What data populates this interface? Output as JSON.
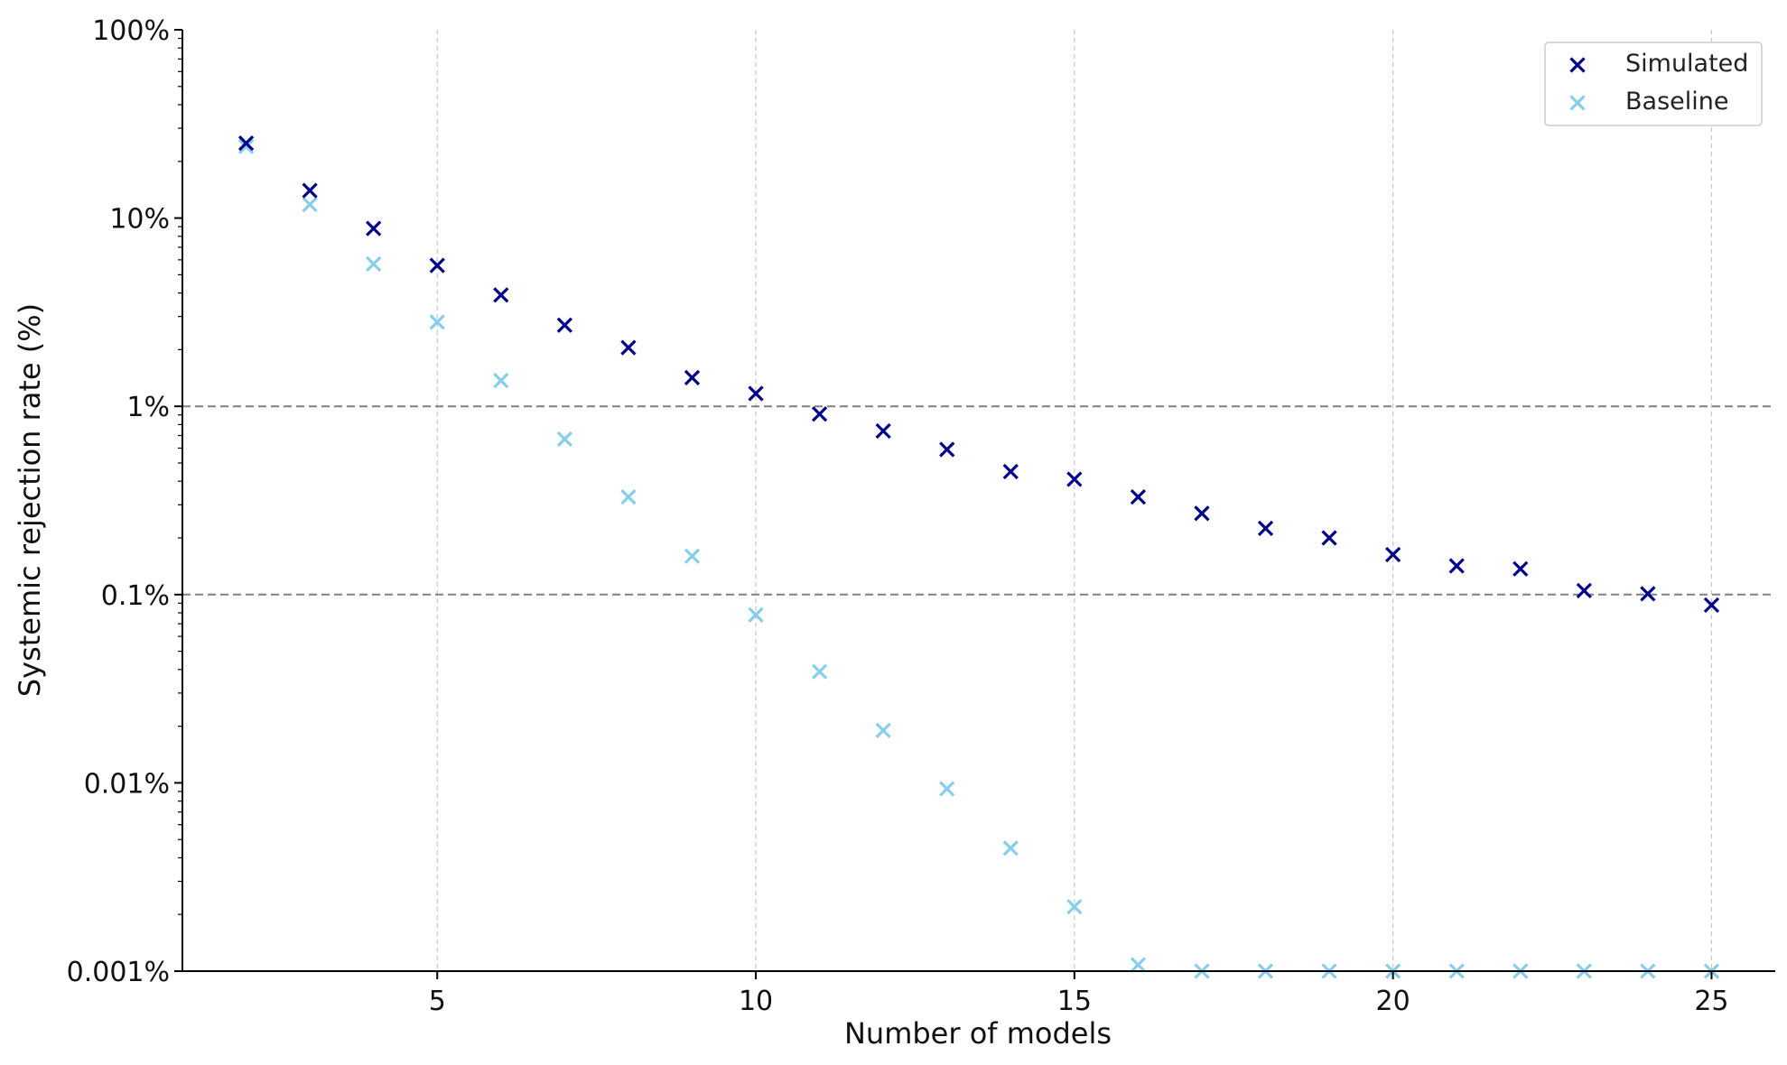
{
  "chart_data": {
    "type": "scatter",
    "xlabel": "Number of models",
    "ylabel": "Systemic rejection rate (%)",
    "xlim": [
      1,
      26
    ],
    "ylim": [
      0.001,
      100
    ],
    "yscale": "log",
    "x_ticks": [
      5,
      10,
      15,
      20,
      25
    ],
    "x_tick_labels": [
      "5",
      "10",
      "15",
      "20",
      "25"
    ],
    "y_ticks": [
      0.001,
      0.01,
      0.1,
      1,
      10,
      100
    ],
    "y_tick_labels": [
      "0.001%",
      "0.01%",
      "0.1%",
      "1%",
      "10%",
      "100%"
    ],
    "grid": "vertical dashed at x ticks",
    "reference_lines": [
      1,
      0.1
    ],
    "legend": {
      "position": "top-right",
      "entries": [
        "Simulated",
        "Baseline"
      ]
    },
    "series": [
      {
        "name": "Simulated",
        "color": "#00008b",
        "marker": "x",
        "x": [
          2,
          3,
          4,
          5,
          6,
          7,
          8,
          9,
          10,
          11,
          12,
          13,
          14,
          15,
          16,
          17,
          18,
          19,
          20,
          21,
          22,
          23,
          24,
          25
        ],
        "y": [
          25,
          14,
          8.8,
          5.6,
          3.9,
          2.7,
          2.05,
          1.42,
          1.17,
          0.91,
          0.74,
          0.59,
          0.45,
          0.41,
          0.33,
          0.27,
          0.225,
          0.2,
          0.163,
          0.142,
          0.137,
          0.105,
          0.101,
          0.088
        ]
      },
      {
        "name": "Baseline",
        "color": "#87ceeb",
        "marker": "x",
        "x": [
          2,
          3,
          4,
          5,
          6,
          7,
          8,
          9,
          10,
          11,
          12,
          13,
          14,
          15,
          16,
          17,
          18,
          19,
          20,
          21,
          22,
          23,
          24,
          25
        ],
        "y": [
          24,
          11.8,
          5.7,
          2.8,
          1.37,
          0.67,
          0.33,
          0.16,
          0.078,
          0.039,
          0.019,
          0.0093,
          0.0045,
          0.0022,
          0.00108,
          0.001,
          0.001,
          0.001,
          0.001,
          0.001,
          0.001,
          0.001,
          0.001,
          0.001
        ]
      }
    ]
  }
}
